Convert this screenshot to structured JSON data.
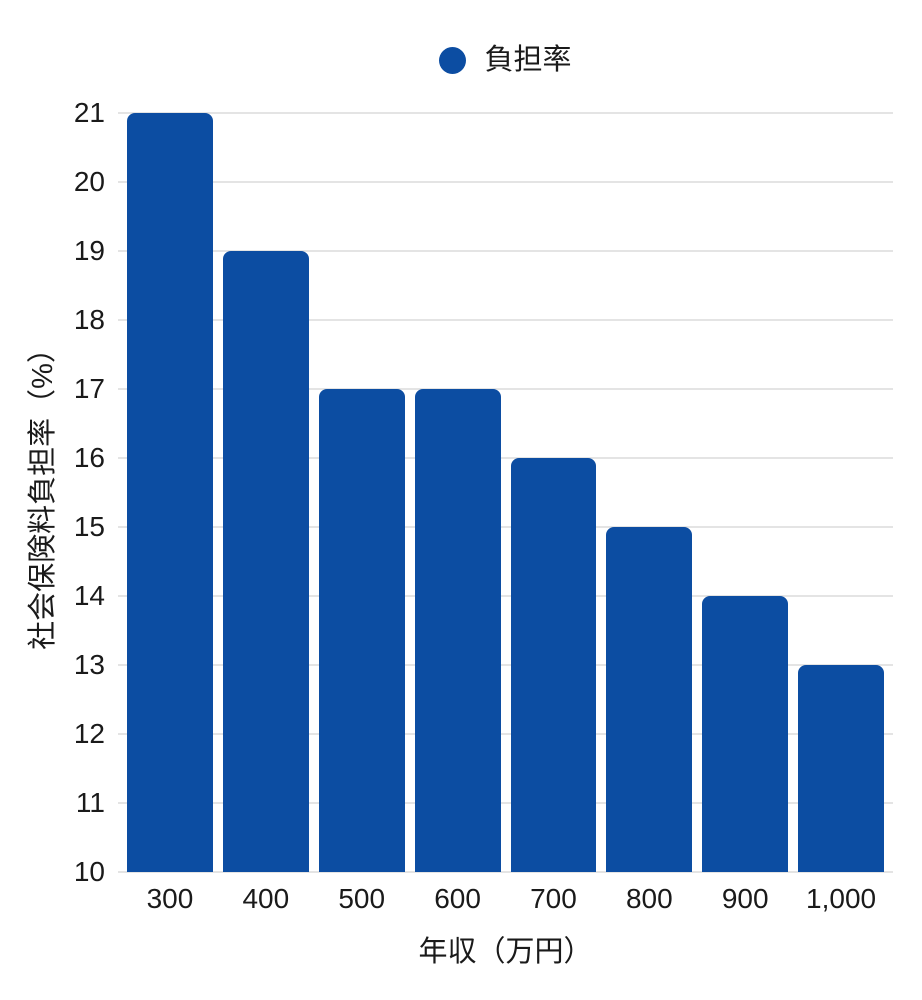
{
  "chart_data": {
    "type": "bar",
    "title": "",
    "legend": {
      "label": "負担率",
      "marker": "circle-icon",
      "position": "top-center"
    },
    "xlabel": "年収（万円）",
    "ylabel": "社会保険料負担率（%）",
    "categories": [
      "300",
      "400",
      "500",
      "600",
      "700",
      "800",
      "900",
      "1,000"
    ],
    "values": [
      21,
      19,
      17,
      17,
      16,
      15,
      14,
      13
    ],
    "ylim": [
      10,
      21
    ],
    "yticks": [
      10,
      11,
      12,
      13,
      14,
      15,
      16,
      17,
      18,
      19,
      20,
      21
    ],
    "grid": true,
    "colors": {
      "bar": "#0c4da2",
      "gridline": "#e4e4e4",
      "text": "#1a1a1a",
      "background": "#ffffff"
    }
  }
}
